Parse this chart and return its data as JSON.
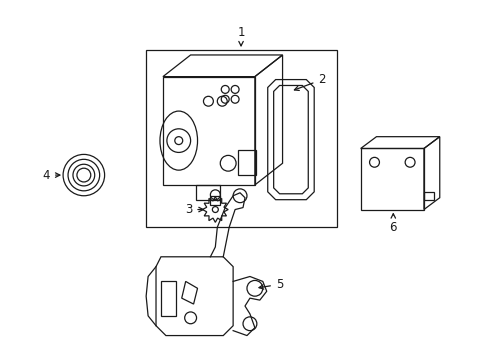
{
  "bg_color": "#ffffff",
  "line_color": "#1a1a1a",
  "figure_width": 4.89,
  "figure_height": 3.6,
  "dpi": 100
}
